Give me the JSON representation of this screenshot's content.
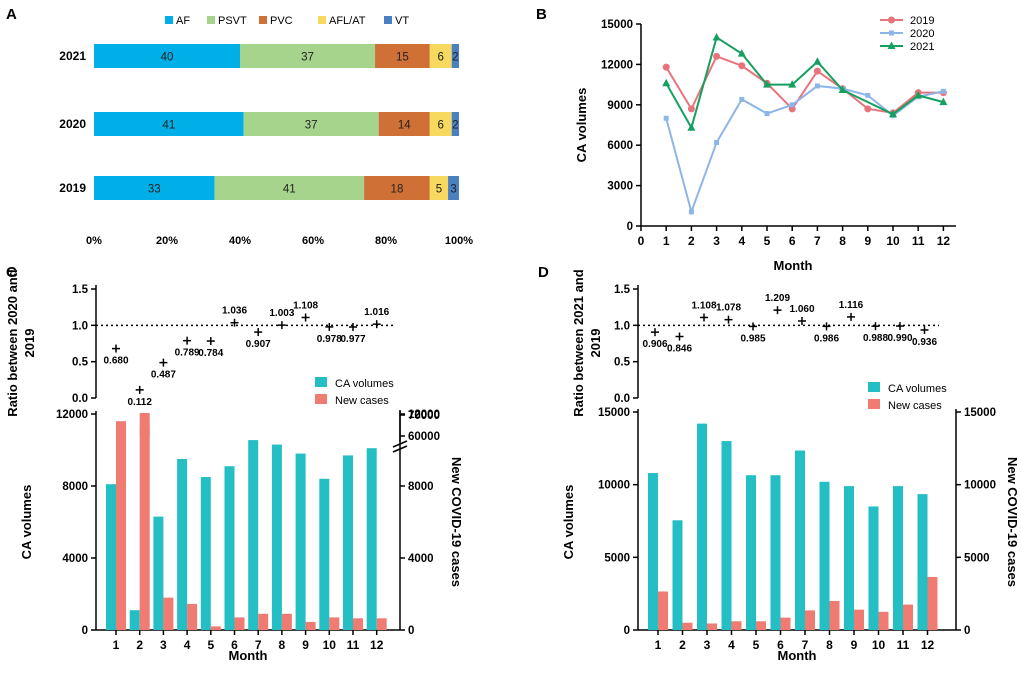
{
  "colors": {
    "af": "#00aee8",
    "psvt": "#a6d48c",
    "pvc": "#cf7136",
    "aflat": "#f7d960",
    "vt": "#4a7fc0",
    "y2019": "#e8737c",
    "y2020": "#8eb5e8",
    "y2021": "#16a060",
    "teal": "#24bfc4",
    "salmon": "#f07b72",
    "black": "#000000"
  },
  "chart_data": [
    {
      "panel": "A",
      "type": "bar",
      "orientation": "horizontal",
      "stacked": true,
      "categories": [
        "2021",
        "2020",
        "2019"
      ],
      "series": [
        {
          "name": "AF",
          "values": [
            40,
            41,
            33
          ]
        },
        {
          "name": "PSVT",
          "values": [
            37,
            37,
            41
          ]
        },
        {
          "name": "PVC",
          "values": [
            15,
            14,
            18
          ]
        },
        {
          "name": "AFL/AT",
          "values": [
            6,
            6,
            5
          ]
        },
        {
          "name": "VT",
          "values": [
            2,
            2,
            3
          ]
        }
      ],
      "xticks": [
        "0%",
        "20%",
        "40%",
        "60%",
        "80%",
        "100%"
      ],
      "xlim": [
        0,
        100
      ]
    },
    {
      "panel": "B",
      "type": "line",
      "xlabel": "Month",
      "ylabel": "CA volumes",
      "x": [
        1,
        2,
        3,
        4,
        5,
        6,
        7,
        8,
        9,
        10,
        11,
        12
      ],
      "xticks": [
        "0",
        "1",
        "2",
        "3",
        "4",
        "5",
        "6",
        "7",
        "8",
        "9",
        "10",
        "11",
        "12"
      ],
      "xlim": [
        0,
        12.5
      ],
      "yticks": [
        "0",
        "3000",
        "6000",
        "9000",
        "12000",
        "15000"
      ],
      "ylim": [
        0,
        15000
      ],
      "series": [
        {
          "name": "2019",
          "values": [
            11800,
            8700,
            12600,
            11900,
            10600,
            8700,
            11500,
            10200,
            8700,
            8400,
            9900,
            9900
          ]
        },
        {
          "name": "2020",
          "values": [
            8000,
            1050,
            6200,
            9400,
            8350,
            9000,
            10400,
            10200,
            9700,
            8200,
            9600,
            10000
          ]
        },
        {
          "name": "2021",
          "values": [
            10600,
            7300,
            14000,
            12800,
            10500,
            10500,
            12200,
            10100,
            null,
            8300,
            9700,
            9200
          ]
        }
      ]
    },
    {
      "panel": "C",
      "type": "bar",
      "xlabel": "Month",
      "ylabel": "CA volumes",
      "ylabel_right": "New COVID-19 cases",
      "ratio_ylabel": "Ratio between 2020 and 2019",
      "ratio_yticks": [
        "0.0",
        "0.5",
        "1.0",
        "1.5"
      ],
      "ratio_values": [
        0.68,
        0.112,
        0.487,
        0.789,
        0.784,
        1.036,
        0.907,
        1.003,
        1.108,
        0.978,
        0.977,
        1.016
      ],
      "ratio_labels": [
        "0.680",
        "0.112",
        "0.487",
        "0.789",
        "0.784",
        "1.036",
        "0.907",
        "1.003",
        "1.108",
        "0.978",
        "0.977",
        "1.016"
      ],
      "categories": [
        "1",
        "2",
        "3",
        "4",
        "5",
        "6",
        "7",
        "8",
        "9",
        "10",
        "11",
        "12"
      ],
      "yticks": [
        "0",
        "4000",
        "8000",
        "12000"
      ],
      "ylim": [
        0,
        12000
      ],
      "yticks_right": [
        "0",
        "4000",
        "8000",
        "12000",
        "60000",
        "70000"
      ],
      "legend": [
        "CA volumes",
        "New cases"
      ],
      "series": [
        {
          "name": "CA volumes",
          "values": [
            8100,
            1100,
            6300,
            9500,
            8500,
            9100,
            10550,
            10300,
            9800,
            8400,
            9700,
            10100
          ]
        },
        {
          "name": "New cases",
          "values": [
            11600,
            65000,
            1800,
            1450,
            200,
            700,
            900,
            900,
            450,
            700,
            650,
            650
          ]
        }
      ]
    },
    {
      "panel": "D",
      "type": "bar",
      "xlabel": "Month",
      "ylabel": "CA volumes",
      "ylabel_right": "New COVID-19 cases",
      "ratio_ylabel": "Ratio between 2021 and 2019",
      "ratio_yticks": [
        "0.0",
        "0.5",
        "1.0",
        "1.5"
      ],
      "ratio_values": [
        0.906,
        0.846,
        1.108,
        1.078,
        0.985,
        1.209,
        1.06,
        0.986,
        1.116,
        0.988,
        0.99,
        0.936
      ],
      "ratio_labels": [
        "0.906",
        "0.846",
        "1.108",
        "1.078",
        "0.985",
        "1.209",
        "1.060",
        "0.986",
        "1.116",
        "0.988",
        "0.990",
        "0.936"
      ],
      "categories": [
        "1",
        "2",
        "3",
        "4",
        "5",
        "6",
        "7",
        "8",
        "9",
        "10",
        "11",
        "12"
      ],
      "yticks": [
        "0",
        "5000",
        "10000",
        "15000"
      ],
      "ylim": [
        0,
        15000
      ],
      "yticks_right": [
        "0",
        "5000",
        "10000",
        "15000"
      ],
      "legend": [
        "CA volumes",
        "New cases"
      ],
      "series": [
        {
          "name": "CA volumes",
          "values": [
            10800,
            7550,
            14200,
            13000,
            10650,
            10650,
            12350,
            10200,
            9900,
            8500,
            9900,
            9350
          ]
        },
        {
          "name": "New cases",
          "values": [
            2650,
            500,
            450,
            600,
            600,
            850,
            1350,
            2000,
            1400,
            1250,
            1750,
            3650
          ]
        }
      ]
    }
  ]
}
